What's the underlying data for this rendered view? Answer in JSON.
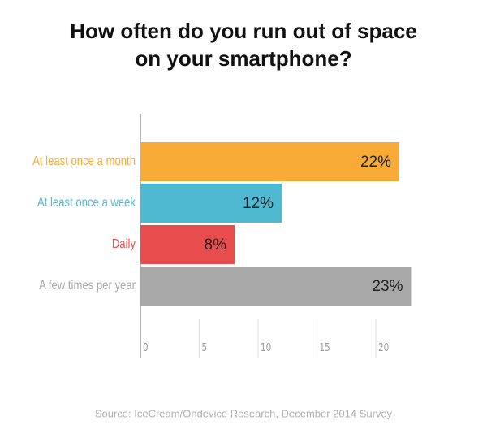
{
  "chart_data": {
    "type": "hbar",
    "title": [
      "How often do you run out of space",
      "on your smartphone?"
    ],
    "categories": [
      "At least once a month",
      "At least once a week",
      "Daily",
      "A few times per year"
    ],
    "values": [
      22,
      12,
      8,
      23
    ],
    "value_labels": [
      "22%",
      "12%",
      "8%",
      "23%"
    ],
    "colors": [
      "#f7aa35",
      "#4fb9d1",
      "#e84d4d",
      "#a8a8a8"
    ],
    "xlim": [
      0,
      25
    ],
    "xticks": [
      0,
      5,
      10,
      15,
      20
    ],
    "source": "Source: IceCream/Ondevice Research, December 2014 Survey"
  }
}
